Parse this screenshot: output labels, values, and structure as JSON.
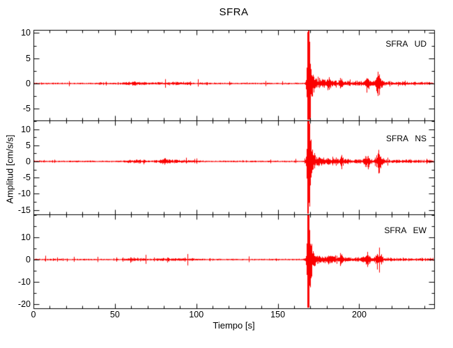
{
  "chart": {
    "title": "SFRA",
    "xlabel": "Tiempo [s]",
    "ylabel": "Amplitud [cm/s/s]"
  },
  "colors": {
    "trace": "#fb0000",
    "axis": "#000000",
    "background": "#ffffff",
    "text": "#000000"
  },
  "chart_data": {
    "type": "line",
    "title": "SFRA",
    "xlabel": "Tiempo [s]",
    "ylabel": "Amplitud [cm/s/s]",
    "grid": false,
    "legend_position": "none",
    "xlim": [
      0,
      246
    ],
    "x_major_ticks": [
      0,
      50,
      100,
      150,
      200
    ],
    "x_tick_labels": [
      "0",
      "50",
      "100",
      "150",
      "200"
    ],
    "x_minor_step": 10,
    "main_event_time_s": 168.3,
    "aftershock_times_s": [
      181,
      189,
      205,
      212
    ],
    "trace_color": "#fb0000",
    "subplots": [
      {
        "label": "SFRA   UD",
        "ylim": [
          -7.3,
          10.6
        ],
        "yticks": [
          10,
          5,
          0,
          -5
        ],
        "ytick_labels": [
          "10",
          "5",
          "0",
          "-5"
        ],
        "y_minor_step": 2.5,
        "envelope": {
          "noise_amp": 0.11,
          "noise_bursts": [
            {
              "t": 62,
              "amp": 0.22,
              "w": 6
            },
            {
              "t": 86,
              "amp": 0.18,
              "w": 12
            }
          ],
          "main_event": {
            "t": 168.3,
            "peak": 28,
            "onset_tau": 0.3,
            "decay_tau": 0.85,
            "coda1_amp": 1.1,
            "coda1_tau": 6,
            "coda2_amp": 0.32,
            "coda2_tau": 60
          },
          "aftershocks": [
            {
              "t": 181,
              "amp": 0.45,
              "w": 0.8
            },
            {
              "t": 189,
              "amp": 0.85,
              "w": 1.0
            },
            {
              "t": 204.8,
              "amp": 1.05,
              "w": 1.4
            },
            {
              "t": 211.8,
              "amp": 1.5,
              "w": 1.8
            }
          ]
        }
      },
      {
        "label": "SFRA   NS",
        "ylim": [
          -16.4,
          12.7
        ],
        "yticks": [
          10,
          5,
          0,
          -5,
          -10,
          -15
        ],
        "ytick_labels": [
          "10",
          "5",
          "0",
          "-5",
          "-10",
          "-15"
        ],
        "y_minor_step": 2.5,
        "envelope": {
          "noise_amp": 0.17,
          "noise_bursts": [
            {
              "t": 62,
              "amp": 0.33,
              "w": 6
            },
            {
              "t": 80,
              "amp": 0.35,
              "w": 3
            },
            {
              "t": 86,
              "amp": 0.28,
              "w": 12
            }
          ],
          "main_event": {
            "t": 168.3,
            "peak": 40,
            "onset_tau": 0.3,
            "decay_tau": 0.85,
            "coda1_amp": 1.7,
            "coda1_tau": 6,
            "coda2_amp": 0.5,
            "coda2_tau": 60
          },
          "aftershocks": [
            {
              "t": 181,
              "amp": 0.7,
              "w": 0.8
            },
            {
              "t": 189,
              "amp": 1.3,
              "w": 1.0
            },
            {
              "t": 204.8,
              "amp": 1.6,
              "w": 1.4
            },
            {
              "t": 211.8,
              "amp": 2.3,
              "w": 1.8
            }
          ]
        }
      },
      {
        "label": "SFRA   EW",
        "ylim": [
          -21.9,
          20.3
        ],
        "yticks": [
          10,
          0,
          -10,
          -20
        ],
        "ytick_labels": [
          "10",
          "0",
          "-10",
          "-20"
        ],
        "y_minor_step": 5,
        "envelope": {
          "noise_amp": 0.25,
          "noise_bursts": [
            {
              "t": 62,
              "amp": 0.5,
              "w": 6
            },
            {
              "t": 86,
              "amp": 0.4,
              "w": 12
            }
          ],
          "main_event": {
            "t": 168.3,
            "peak": 60,
            "onset_tau": 0.3,
            "decay_tau": 0.85,
            "coda1_amp": 2.5,
            "coda1_tau": 6,
            "coda2_amp": 0.72,
            "coda2_tau": 60
          },
          "aftershocks": [
            {
              "t": 181,
              "amp": 1.0,
              "w": 0.8
            },
            {
              "t": 189,
              "amp": 1.9,
              "w": 1.0
            },
            {
              "t": 204.8,
              "amp": 2.4,
              "w": 1.4
            },
            {
              "t": 211.8,
              "amp": 3.4,
              "w": 1.8
            }
          ]
        }
      }
    ]
  }
}
